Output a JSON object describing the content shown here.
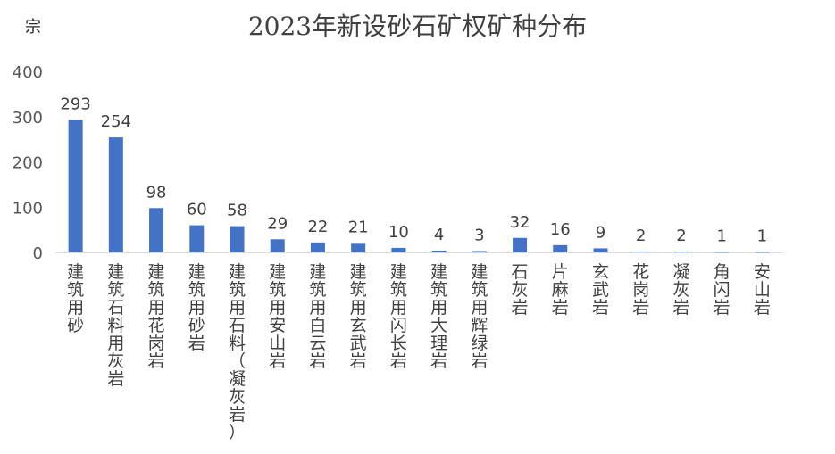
{
  "chart_data": {
    "type": "bar",
    "title": "2023年新设砂石矿权矿种分布",
    "ylabel": "宗",
    "xlabel": "",
    "ylim": [
      0,
      400
    ],
    "yticks": [
      0,
      100,
      200,
      300,
      400
    ],
    "grid": false,
    "bar_color": "#4472C4",
    "categories": [
      "建筑用砂",
      "建筑石料用灰岩",
      "建筑用花岗岩",
      "建筑用砂岩",
      "建筑用石料（凝灰岩）",
      "建筑用安山岩",
      "建筑用白云岩",
      "建筑用玄武岩",
      "建筑用闪长岩",
      "建筑用大理岩",
      "建筑用辉绿岩",
      "石灰岩",
      "片麻岩",
      "玄武岩",
      "花岗岩",
      "凝灰岩",
      "角闪岩",
      "安山岩"
    ],
    "values": [
      293,
      254,
      98,
      60,
      58,
      29,
      22,
      21,
      10,
      4,
      3,
      32,
      16,
      9,
      2,
      2,
      1,
      1
    ]
  }
}
